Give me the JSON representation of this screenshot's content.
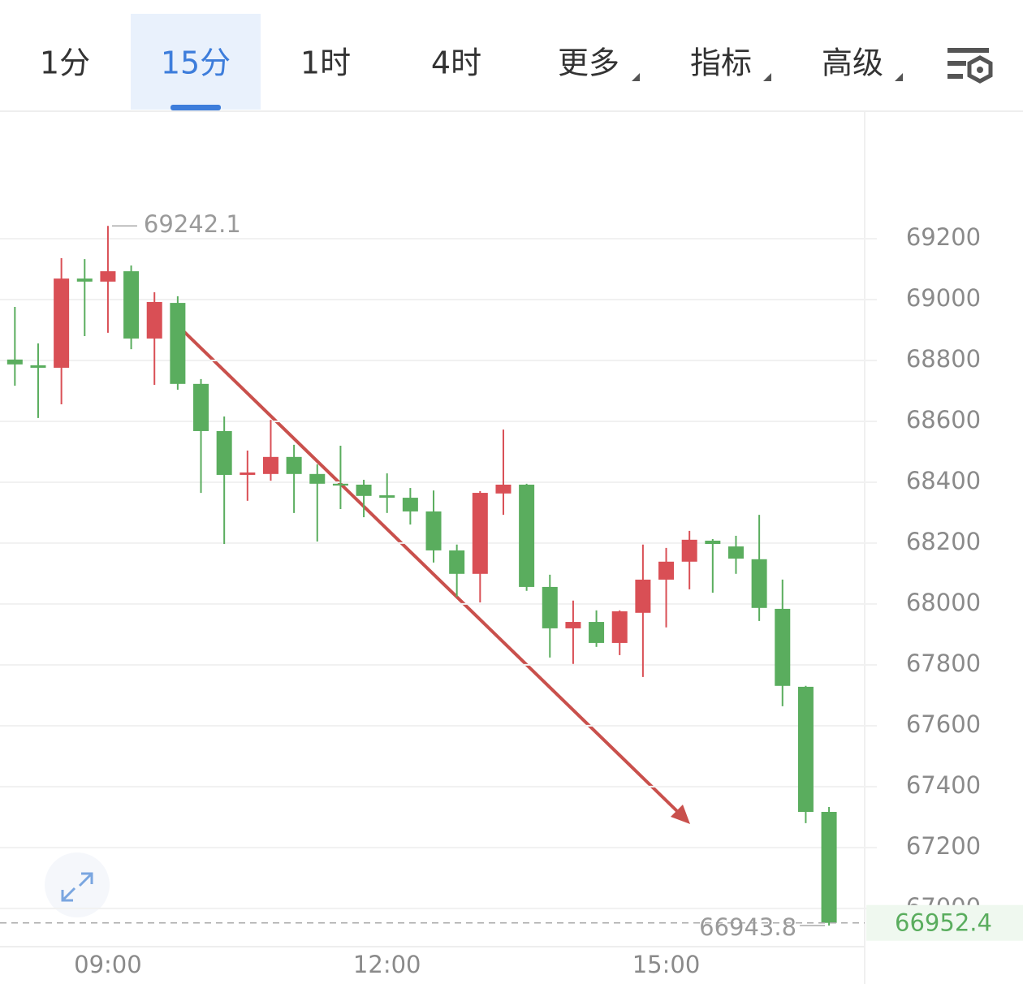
{
  "tabs": [
    "1分",
    "15分",
    "1时",
    "4时",
    "更多",
    "指标",
    "高级"
  ],
  "active_tab": 1,
  "chart_data": {
    "type": "candlestick",
    "categories": [
      null,
      null,
      null,
      null,
      "09:00",
      null,
      null,
      null,
      null,
      null,
      null,
      null,
      null,
      null,
      null,
      null,
      "12:00",
      null,
      null,
      null,
      null,
      null,
      null,
      null,
      null,
      null,
      null,
      null,
      "15:00",
      null,
      null,
      null,
      null,
      null,
      null,
      null
    ],
    "open": [
      68803,
      68784,
      68776,
      69069,
      69059,
      69093,
      68872,
      68989,
      68723,
      68568,
      68424,
      68427,
      68483,
      68427,
      68395,
      68392,
      68357,
      68349,
      68304,
      68176,
      68099,
      68363,
      68392,
      68056,
      67920,
      67941,
      67872,
      67971,
      68080,
      68139,
      68208,
      68189,
      68147,
      67984,
      67728,
      67317
    ],
    "high": [
      68976,
      68856,
      69136,
      69133,
      69242.1,
      69112,
      69024,
      69011,
      68739,
      68616,
      68504,
      68605,
      68523,
      68459,
      68520,
      68408,
      68429,
      68381,
      68373,
      68195,
      68371,
      68573,
      68395,
      68096,
      68011,
      67979,
      67979,
      68195,
      68184,
      68240,
      68213,
      68224,
      68293,
      68080,
      67731,
      67333
    ],
    "low": [
      68717,
      68611,
      68656,
      68880,
      68891,
      68837,
      68720,
      68704,
      68365,
      68197,
      68339,
      68405,
      68299,
      68205,
      68312,
      68285,
      68299,
      68261,
      68136,
      68024,
      68005,
      68293,
      68043,
      67824,
      67803,
      67859,
      67832,
      67760,
      67923,
      68048,
      68037,
      68099,
      67944,
      67664,
      67280,
      66943.8
    ],
    "close": [
      68787,
      68776,
      69069,
      69059,
      69093,
      68872,
      68992,
      68723,
      68568,
      68424,
      68432,
      68483,
      68427,
      68395,
      68389,
      68355,
      68349,
      68304,
      68176,
      68099,
      68365,
      68392,
      68056,
      67920,
      67941,
      67872,
      67976,
      68080,
      68139,
      68211,
      68197,
      68149,
      67987,
      67731,
      67317,
      66952.4
    ],
    "up_color": "#d94f55",
    "down_color": "#5aad5e",
    "ylim": [
      66877,
      69624
    ],
    "yticks": [
      67000,
      67200,
      67400,
      67600,
      67800,
      68000,
      68200,
      68400,
      68600,
      68800,
      69000,
      69200
    ],
    "grid": true
  }
}
